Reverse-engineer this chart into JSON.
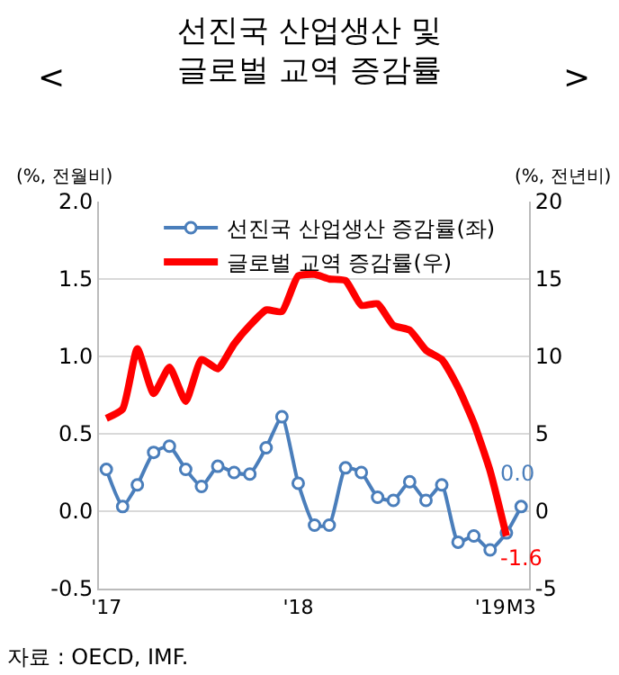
{
  "chart_data": {
    "type": "line",
    "title": "선진국 산업생산 및\n글로벌 교역 증감률",
    "ylabel": "(%, 전월비)",
    "y2label": "(%, 전년비)",
    "annotations": [
      "<",
      ">",
      "자료 : OECD, IMF.",
      "0.0",
      "-1.6"
    ],
    "x": [
      "2017-01",
      "2017-02",
      "2017-03",
      "2017-04",
      "2017-05",
      "2017-06",
      "2017-07",
      "2017-08",
      "2017-09",
      "2017-10",
      "2017-11",
      "2017-12",
      "2018-01",
      "2018-02",
      "2018-03",
      "2018-04",
      "2018-05",
      "2018-06",
      "2018-07",
      "2018-08",
      "2018-09",
      "2018-10",
      "2018-11",
      "2018-12",
      "2019-01",
      "2019-02",
      "2019-03"
    ],
    "series": [
      {
        "name": "선진국 산업생산 증감률(좌)",
        "color": "#4a7ebb",
        "marker": "circle",
        "values": [
          0.27,
          0.03,
          0.17,
          0.38,
          0.42,
          0.27,
          0.16,
          0.29,
          0.25,
          0.24,
          0.41,
          0.61,
          0.18,
          -0.09,
          -0.09,
          0.28,
          0.25,
          0.09,
          0.07,
          0.19,
          0.07,
          0.17,
          -0.2,
          -0.16,
          -0.25,
          -0.14,
          0.03
        ]
      },
      {
        "name": "글로벌 교역 증감률(우)",
        "color": "#ff0000",
        "marker": "none",
        "axis": "y2",
        "values": [
          6.0,
          6.6,
          10.5,
          7.6,
          9.3,
          7.1,
          9.8,
          9.2,
          10.8,
          12.0,
          13.0,
          12.9,
          15.2,
          15.3,
          15.0,
          14.9,
          13.3,
          13.4,
          12.0,
          11.7,
          10.4,
          9.8,
          8.0,
          5.7,
          2.6,
          -1.6,
          null
        ]
      }
    ],
    "xlim": [
      "2016-12-18",
      "2019-03-16"
    ],
    "xticks": [
      {
        "value": "2017-01",
        "label": "'17"
      },
      {
        "value": "2018-01",
        "label": "'18"
      },
      {
        "value": "2019-01",
        "label": "'19"
      },
      {
        "value": "2019-03",
        "label": "M3"
      }
    ],
    "ylim": [
      -0.5,
      2.0
    ],
    "yticks": [
      {
        "value": -0.5,
        "label": "-0.5"
      },
      {
        "value": 0,
        "label": "0.0"
      },
      {
        "value": 0.5,
        "label": "0.5"
      },
      {
        "value": 1.0,
        "label": "1.0"
      },
      {
        "value": 1.5,
        "label": "1.5"
      },
      {
        "value": 2.0,
        "label": "2.0"
      }
    ],
    "y2lim": [
      -5,
      20
    ],
    "y2ticks": [
      -5,
      0,
      5,
      10,
      15,
      20
    ],
    "grid": "y",
    "legend": "top left"
  }
}
